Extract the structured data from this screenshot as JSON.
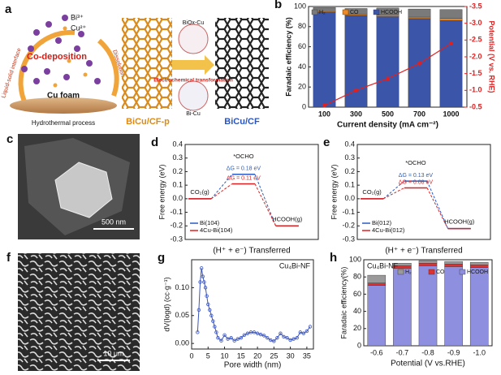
{
  "panel_a": {
    "letter": "a",
    "ions": [
      "Bi³⁺",
      "Cu²⁺"
    ],
    "process": "Co-deposition",
    "left_arc": "Liquid-solid interface",
    "right_arc": "Dissolution",
    "substrate": "Cu foam",
    "step1": "Hydrothermal process",
    "phase1": "BiOx-Cu",
    "step2": "Electrochemical transformation",
    "phase2": "Bi-Cu",
    "product1": "BiCu/CF-p",
    "product2": "BiCu/CF"
  },
  "panel_c": {
    "letter": "c",
    "scale_bar": "500 nm"
  },
  "panel_f": {
    "letter": "f",
    "scale_bar": "10 μm"
  },
  "chart_data": [
    {
      "type": "bar",
      "letter": "b",
      "stacked": true,
      "legend": "top-left",
      "xlabel": "Current density (mA cm⁻²)",
      "ylabel": "Faradaic efficiency (%)",
      "y2label": "Potential (V vs. RHE)",
      "categories": [
        "100",
        "300",
        "500",
        "700",
        "1000"
      ],
      "ylim": [
        0,
        100
      ],
      "yticks": [
        0,
        20,
        40,
        60,
        80,
        100
      ],
      "y2lim": [
        -0.5,
        -3.5
      ],
      "y2ticks": [
        -0.5,
        {
          "value": -1,
          "label": "-1.0"
        },
        -1.5,
        {
          "value": -2,
          "label": "-2.0"
        },
        -2.5,
        {
          "value": -3,
          "label": "-3.0"
        },
        -3.5
      ],
      "series": [
        {
          "name": "HCOOH",
          "color": "#3b55a8",
          "values": [
            94,
            91,
            90,
            88,
            86
          ]
        },
        {
          "name": "CO",
          "color": "#f08a24",
          "values": [
            1,
            1,
            1.5,
            1.5,
            2
          ]
        },
        {
          "name": "H₂",
          "color": "#7a7a7a",
          "values": [
            4,
            6,
            7,
            8,
            9
          ]
        },
        {
          "axis": "y2",
          "color": "#e02020",
          "values": [
            -0.55,
            -1.0,
            -1.35,
            -1.8,
            -2.4
          ]
        }
      ]
    },
    {
      "type": "energy",
      "letter": "d",
      "ylabel": "Free energy (eV)",
      "xlabel": "(H⁺ + e⁻) Transferred",
      "ylim": [
        -0.3,
        0.4
      ],
      "yticks": [
        -0.3,
        -0.2,
        -0.1,
        {
          "value": 0,
          "label": "0.0"
        },
        0.1,
        0.2,
        0.3,
        0.4
      ],
      "state_labels": [
        "CO₂(g)",
        "*OCHO",
        "HCOOH(g)"
      ],
      "series": [
        {
          "name": "Bi(104)",
          "color": "#2a5cc0",
          "values": [
            0,
            0.18,
            -0.2
          ]
        },
        {
          "name": "4Cu-Bi(104)",
          "color": "#e02020",
          "values": [
            0,
            0.11,
            -0.2
          ]
        }
      ],
      "annotations": [
        "ΔG = 0.18 eV",
        "ΔG = 0.11 eV"
      ]
    },
    {
      "type": "energy",
      "letter": "e",
      "ylabel": "Free energy (eV)",
      "xlabel": "(H⁺ + e⁻) Transferred",
      "ylim": [
        -0.3,
        0.4
      ],
      "yticks": [
        -0.3,
        -0.2,
        -0.1,
        {
          "value": 0,
          "label": "0.0"
        },
        0.1,
        0.2,
        0.3,
        0.4
      ],
      "state_labels": [
        "CO₂(g)",
        "*OCHO",
        "HCOOH(g)"
      ],
      "series": [
        {
          "name": "Bi(012)",
          "color": "#2a5cc0",
          "values": [
            0,
            0.13,
            -0.22
          ]
        },
        {
          "name": "4Cu-Bi(012)",
          "color": "#e02020",
          "values": [
            0,
            0.08,
            -0.22
          ]
        }
      ],
      "annotations": [
        "ΔG = 0.13 eV",
        "ΔG = 0.08 eV"
      ]
    },
    {
      "type": "line",
      "letter": "g",
      "label": "Cu₄Bi-NF",
      "xlabel": "Pore width (nm)",
      "ylabel": "dV(logd) (cc·g⁻¹)",
      "color": "#3a55c0",
      "xlim": [
        0,
        37
      ],
      "xticks": [
        0,
        5,
        10,
        15,
        20,
        25,
        30,
        35
      ],
      "ylim": [
        -0.01,
        0.15
      ],
      "yticks": [
        {
          "value": 0,
          "label": "0.00"
        },
        0.05,
        {
          "value": 0.1,
          "label": "0.10"
        }
      ],
      "x": [
        1.8,
        2.2,
        2.6,
        3.0,
        3.4,
        3.8,
        4.2,
        4.6,
        5,
        5.5,
        6,
        6.5,
        7,
        7.5,
        8,
        9,
        10,
        11,
        12,
        13,
        14,
        15,
        16,
        17,
        18,
        19,
        20,
        21,
        22,
        23,
        24,
        25,
        26,
        27,
        28,
        29,
        30,
        31,
        32,
        33,
        34,
        35,
        36
      ],
      "values": [
        0.02,
        0.06,
        0.11,
        0.135,
        0.12,
        0.11,
        0.1,
        0.085,
        0.07,
        0.06,
        0.05,
        0.04,
        0.03,
        0.02,
        0.01,
        0.005,
        0.015,
        0.008,
        0.01,
        0.005,
        0.008,
        0.01,
        0.015,
        0.018,
        0.02,
        0.02,
        0.018,
        0.016,
        0.014,
        0.01,
        0.006,
        0.004,
        0.01,
        0.018,
        0.012,
        0.01,
        0.006,
        0.008,
        0.01,
        0.02,
        0.018,
        0.022,
        0.03
      ]
    },
    {
      "type": "bar",
      "letter": "h",
      "stacked": true,
      "legend": "top-right",
      "label": "Cu₄Bi-NF",
      "xlabel": "Potential (V vs.RHE)",
      "ylabel": "Faradaic efficiency(%)",
      "categories": [
        "-0.6",
        "-0.7",
        "-0.8",
        "-0.9",
        "-1.0"
      ],
      "ylim": [
        0,
        100
      ],
      "yticks": [
        0,
        20,
        40,
        60,
        80,
        100
      ],
      "series": [
        {
          "name": "HCOOH",
          "color": "#8f8fe0",
          "values": [
            70,
            90,
            93,
            92,
            91
          ]
        },
        {
          "name": "CO",
          "color": "#e03030",
          "values": [
            3,
            3,
            3,
            3,
            3
          ]
        },
        {
          "name": "H₂",
          "color": "#9a9a9a",
          "values": [
            9,
            3,
            3,
            3,
            3
          ]
        }
      ]
    }
  ]
}
